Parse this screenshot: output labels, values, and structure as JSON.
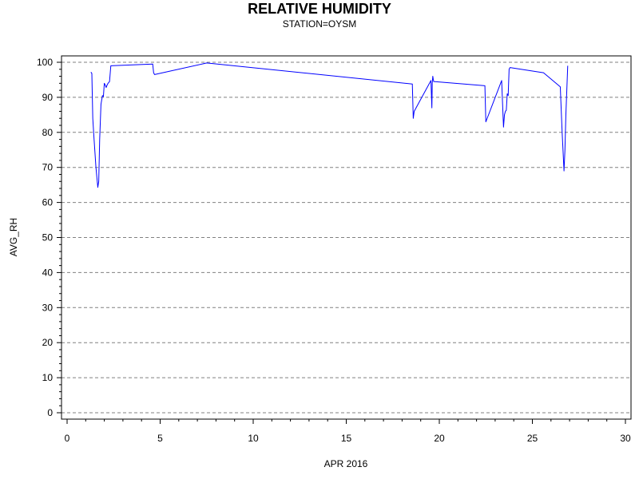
{
  "chart_data": {
    "type": "line",
    "title": "RELATIVE HUMIDITY",
    "subtitle": "STATION=OYSM",
    "xlabel": "APR 2016",
    "ylabel": "AVG_RH",
    "xlim": [
      0,
      30
    ],
    "ylim": [
      0,
      100
    ],
    "x_ticks": [
      0,
      5,
      10,
      15,
      20,
      25,
      30
    ],
    "y_ticks": [
      0,
      10,
      20,
      30,
      40,
      50,
      60,
      70,
      80,
      90,
      100
    ],
    "grid": "horizontal dashed",
    "colors": {
      "line": "#0000ff",
      "grid": "#808080",
      "axis": "#000000"
    },
    "series": [
      {
        "x": [
          1.28,
          1.33,
          1.38,
          1.45,
          1.55,
          1.65,
          1.7,
          1.75,
          1.82,
          1.9,
          1.95,
          2.0,
          2.05,
          2.1,
          2.15,
          2.2,
          2.28,
          2.35,
          4.6,
          4.65,
          4.7,
          7.5,
          18.55,
          18.6,
          18.65,
          19.55,
          19.6,
          19.62,
          19.65,
          19.68,
          19.7,
          22.45,
          22.5,
          23.35,
          23.4,
          23.45,
          23.5,
          23.55,
          23.6,
          23.65,
          23.7,
          23.75,
          23.8,
          25.6,
          26.5,
          26.6,
          26.7,
          26.75,
          26.8,
          26.85,
          26.9
        ],
        "y": [
          97.2,
          96.8,
          84,
          78,
          70,
          64.3,
          66,
          78,
          88,
          90.5,
          90.2,
          94,
          93.5,
          92.8,
          93.5,
          94,
          94.5,
          99,
          99.5,
          97,
          96.5,
          99.8,
          93.8,
          84,
          86,
          94.8,
          87,
          94,
          96,
          95,
          94.5,
          93.3,
          83,
          94.8,
          88,
          81.5,
          85,
          86,
          86.3,
          91,
          90.5,
          98,
          98.5,
          97,
          93,
          80,
          69,
          75,
          85,
          92,
          99
        ]
      }
    ]
  }
}
